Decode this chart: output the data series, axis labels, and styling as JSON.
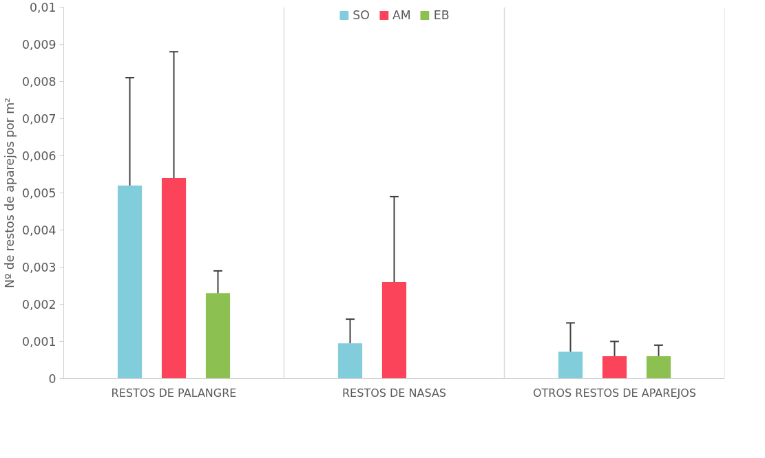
{
  "chart_data": {
    "type": "bar",
    "ylabel": "Nº de restos de aparejos por m²",
    "categories": [
      "RESTOS DE PALANGRE",
      "RESTOS DE NASAS",
      "OTROS RESTOS DE APAREJOS"
    ],
    "series": [
      {
        "name": "SO",
        "color": "#81cddb",
        "values": [
          0.0052,
          0.00095,
          0.00072
        ],
        "errors": [
          [
            0.0052,
            0.0081
          ],
          [
            0.00095,
            0.0016
          ],
          [
            0.00072,
            0.0015
          ]
        ]
      },
      {
        "name": "AM",
        "color": "#fb4459",
        "values": [
          0.0054,
          0.0026,
          0.0006
        ],
        "errors": [
          [
            0.0054,
            0.0088
          ],
          [
            0.0026,
            0.0049
          ],
          [
            0.0006,
            0.001
          ]
        ]
      },
      {
        "name": "EB",
        "color": "#8cc152",
        "values": [
          0.0023,
          null,
          0.0006
        ],
        "errors": [
          [
            0.0023,
            0.0029
          ],
          null,
          [
            0.0006,
            0.0009
          ]
        ]
      }
    ],
    "ylim": [
      0,
      0.01
    ],
    "yticks": [
      {
        "value": 0,
        "label": "0"
      },
      {
        "value": 0.001,
        "label": "0,001"
      },
      {
        "value": 0.002,
        "label": "0,002"
      },
      {
        "value": 0.003,
        "label": "0,003"
      },
      {
        "value": 0.004,
        "label": "0,004"
      },
      {
        "value": 0.005,
        "label": "0,005"
      },
      {
        "value": 0.006,
        "label": "0,006"
      },
      {
        "value": 0.007,
        "label": "0,007"
      },
      {
        "value": 0.008,
        "label": "0,008"
      },
      {
        "value": 0.009,
        "label": "0,009"
      },
      {
        "value": 0.01,
        "label": "0,01"
      }
    ],
    "grid": "x",
    "legend": "top"
  }
}
